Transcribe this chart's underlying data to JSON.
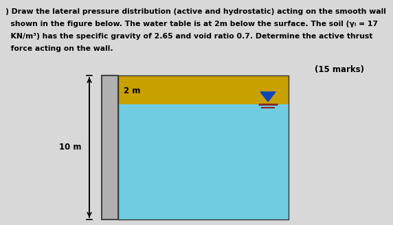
{
  "marks_text": "(15 marks)",
  "dim_label_10m": "10 m",
  "dim_label_2m": "2 m",
  "bg_color": "#d8d8d8",
  "wall_color": "#b0b0b0",
  "wall_border_color": "#444444",
  "soil_above_wt_color": "#c8a000",
  "soil_below_wt_color": "#70cce0",
  "wt_triangle_color": "#1144bb",
  "wt_line_color": "#882222",
  "text_line1": ") Draw the lateral pressure distribution (active and hydrostatic) acting on the smooth wall",
  "text_line2": "  shown in the figure below. The water table is at 2m below the surface. The soil (Y",
  "text_line2b": "w = 17",
  "text_line3": "  KN/m³) has the specific gravity of 2.65 and void ratio 0.7. Determine the active thrust",
  "text_line4": "  force acting on the wall."
}
